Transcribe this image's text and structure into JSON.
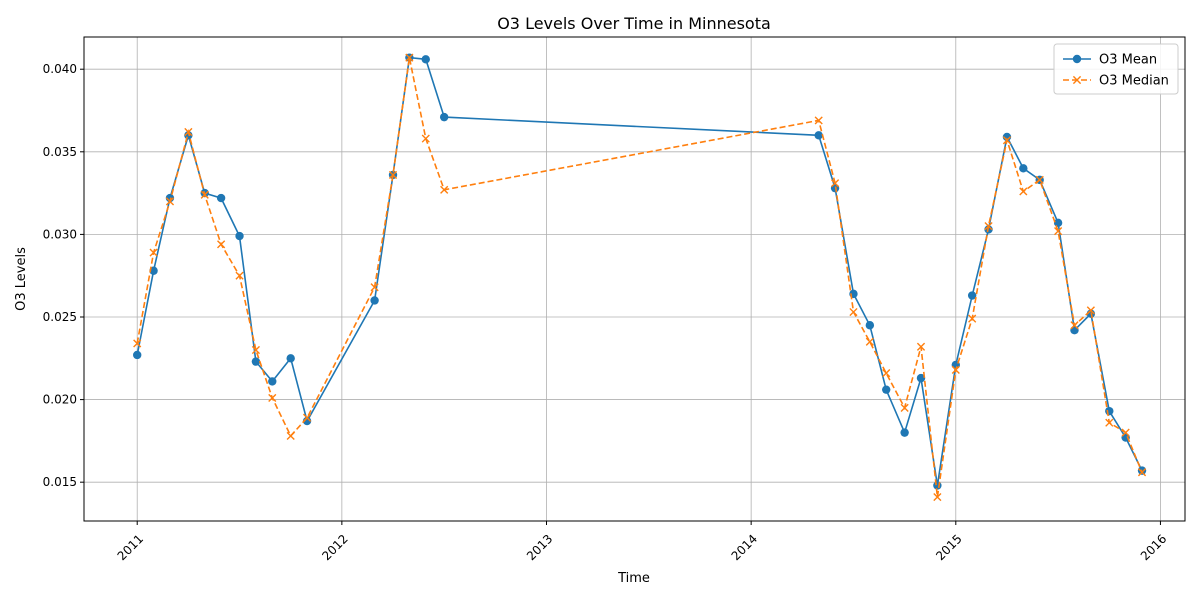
{
  "chart_data": {
    "type": "line",
    "title": "O3 Levels Over Time in Minnesota",
    "xlabel": "Time",
    "ylabel": "O3 Levels",
    "xlim": [
      2010.74,
      2016.12
    ],
    "ylim": [
      0.01265,
      0.04195
    ],
    "x_ticks": [
      2011,
      2012,
      2013,
      2014,
      2015,
      2016
    ],
    "x_tick_labels": [
      "2011",
      "2012",
      "2013",
      "2014",
      "2015",
      "2016"
    ],
    "y_ticks": [
      0.015,
      0.02,
      0.025,
      0.03,
      0.035,
      0.04
    ],
    "y_tick_labels": [
      "0.015",
      "0.020",
      "0.025",
      "0.030",
      "0.035",
      "0.040"
    ],
    "grid": true,
    "legend_position": "top-right",
    "series": [
      {
        "name": "O3 Mean",
        "color": "#1f77b4",
        "style": "solid",
        "marker": "circle",
        "points": [
          [
            2011.0,
            0.0227
          ],
          [
            2011.08,
            0.0278
          ],
          [
            2011.16,
            0.0322
          ],
          [
            2011.25,
            0.036
          ],
          [
            2011.33,
            0.0325
          ],
          [
            2011.41,
            0.0322
          ],
          [
            2011.5,
            0.0299
          ],
          [
            2011.58,
            0.0223
          ],
          [
            2011.66,
            0.0211
          ],
          [
            2011.75,
            0.0225
          ],
          [
            2011.83,
            0.0187
          ],
          [
            2012.16,
            0.026
          ],
          [
            2012.25,
            0.0336
          ],
          [
            2012.33,
            0.0407
          ],
          [
            2012.41,
            0.0406
          ],
          [
            2012.5,
            0.0371
          ],
          [
            2014.33,
            0.036
          ],
          [
            2014.41,
            0.0328
          ],
          [
            2014.5,
            0.0264
          ],
          [
            2014.58,
            0.0245
          ],
          [
            2014.66,
            0.0206
          ],
          [
            2014.75,
            0.018
          ],
          [
            2014.83,
            0.0213
          ],
          [
            2014.91,
            0.0148
          ],
          [
            2015.0,
            0.0221
          ],
          [
            2015.08,
            0.0263
          ],
          [
            2015.16,
            0.0303
          ],
          [
            2015.25,
            0.0359
          ],
          [
            2015.33,
            0.034
          ],
          [
            2015.41,
            0.0333
          ],
          [
            2015.5,
            0.0307
          ],
          [
            2015.58,
            0.0242
          ],
          [
            2015.66,
            0.0252
          ],
          [
            2015.75,
            0.0193
          ],
          [
            2015.83,
            0.0177
          ],
          [
            2015.91,
            0.0157
          ]
        ]
      },
      {
        "name": "O3 Median",
        "color": "#ff7f0e",
        "style": "dashed",
        "marker": "x",
        "points": [
          [
            2011.0,
            0.0234
          ],
          [
            2011.08,
            0.0289
          ],
          [
            2011.16,
            0.032
          ],
          [
            2011.25,
            0.0362
          ],
          [
            2011.33,
            0.0324
          ],
          [
            2011.41,
            0.0294
          ],
          [
            2011.5,
            0.0275
          ],
          [
            2011.58,
            0.023
          ],
          [
            2011.66,
            0.0201
          ],
          [
            2011.75,
            0.0178
          ],
          [
            2011.83,
            0.0189
          ],
          [
            2012.16,
            0.0268
          ],
          [
            2012.25,
            0.0336
          ],
          [
            2012.33,
            0.0407
          ],
          [
            2012.41,
            0.0358
          ],
          [
            2012.5,
            0.0327
          ],
          [
            2014.33,
            0.0369
          ],
          [
            2014.41,
            0.0331
          ],
          [
            2014.5,
            0.0253
          ],
          [
            2014.58,
            0.0235
          ],
          [
            2014.66,
            0.0216
          ],
          [
            2014.75,
            0.0195
          ],
          [
            2014.83,
            0.0232
          ],
          [
            2014.91,
            0.0141
          ],
          [
            2015.0,
            0.0218
          ],
          [
            2015.08,
            0.0249
          ],
          [
            2015.16,
            0.0305
          ],
          [
            2015.25,
            0.0357
          ],
          [
            2015.33,
            0.0326
          ],
          [
            2015.41,
            0.0333
          ],
          [
            2015.5,
            0.0302
          ],
          [
            2015.58,
            0.0245
          ],
          [
            2015.66,
            0.0254
          ],
          [
            2015.75,
            0.0186
          ],
          [
            2015.83,
            0.018
          ],
          [
            2015.91,
            0.0156
          ]
        ]
      }
    ]
  }
}
